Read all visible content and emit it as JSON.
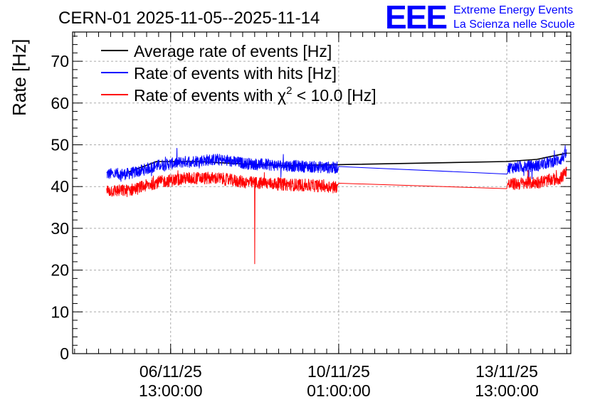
{
  "header": {
    "title": "CERN-01 2025-11-05--2025-11-14",
    "logo_text": "EEE",
    "logo_line1": "Extreme Energy Events",
    "logo_line2": "La Scienza nelle Scuole"
  },
  "colors": {
    "average": "#000000",
    "hits": "#0000ff",
    "chi2": "#ff0000",
    "logo": "#0000ff",
    "grid": "#aaaaaa"
  },
  "chart_data": {
    "type": "line",
    "title": "CERN-01 2025-11-05--2025-11-14",
    "xlabel": "",
    "ylabel": "Rate [Hz]",
    "x_unit": "hours since 2025-11-05 00:00",
    "xlim": [
      -12,
      237
    ],
    "ylim": [
      0,
      77
    ],
    "grid": true,
    "legend_position": "top-left",
    "y_ticks": [
      "0",
      "10",
      "20",
      "30",
      "40",
      "50",
      "60",
      "70"
    ],
    "x_ticks": [
      {
        "x": 37,
        "line1": "06/11/25",
        "line2": "13:00:00"
      },
      {
        "x": 121,
        "line1": "10/11/25",
        "line2": "01:00:00"
      },
      {
        "x": 205,
        "line1": "13/11/25",
        "line2": "13:00:00"
      }
    ],
    "legend": [
      {
        "key": "average",
        "label": "Average rate of events [Hz]"
      },
      {
        "key": "hits",
        "label": "Rate of events with hits [Hz]"
      },
      {
        "key": "chi2",
        "label_prefix": "Rate of events with ",
        "label_symbol": "χ",
        "label_sup": "2",
        "label_suffix": " < 10.0 [Hz]"
      }
    ],
    "series": [
      {
        "key": "average",
        "name": "Average rate of events [Hz]",
        "points": [
          [
            16,
            43.5
          ],
          [
            30,
            46.0
          ],
          [
            50,
            46.0
          ],
          [
            70,
            45.5
          ],
          [
            94,
            45.0
          ],
          [
            205,
            46.0
          ],
          [
            220,
            46.5
          ],
          [
            235,
            48.0
          ]
        ]
      },
      {
        "key": "hits",
        "name": "Rate of events with hits [Hz]",
        "noise": 1.4,
        "points": [
          [
            5,
            43.0
          ],
          [
            15,
            43.0
          ],
          [
            20,
            43.5
          ],
          [
            30,
            45.0
          ],
          [
            45,
            46.0
          ],
          [
            60,
            46.5
          ],
          [
            75,
            45.5
          ],
          [
            95,
            45.0
          ],
          [
            120,
            44.5
          ],
          [
            121,
            44.8
          ],
          [
            205,
            43.0
          ],
          [
            205.5,
            44.5
          ],
          [
            220,
            45.0
          ],
          [
            232,
            46.5
          ],
          [
            235,
            48.0
          ]
        ]
      },
      {
        "key": "chi2",
        "name": "Rate of events with χ2 < 10.0 [Hz]",
        "noise": 1.5,
        "dip": {
          "x": 79,
          "y": 21.5
        },
        "points": [
          [
            5,
            39.0
          ],
          [
            15,
            39.0
          ],
          [
            20,
            39.5
          ],
          [
            30,
            41.0
          ],
          [
            45,
            42.0
          ],
          [
            60,
            42.0
          ],
          [
            75,
            41.0
          ],
          [
            95,
            40.5
          ],
          [
            120,
            40.0
          ],
          [
            121,
            40.8
          ],
          [
            205,
            39.5
          ],
          [
            205.5,
            40.5
          ],
          [
            220,
            41.0
          ],
          [
            232,
            42.0
          ],
          [
            235,
            43.5
          ]
        ]
      }
    ]
  }
}
